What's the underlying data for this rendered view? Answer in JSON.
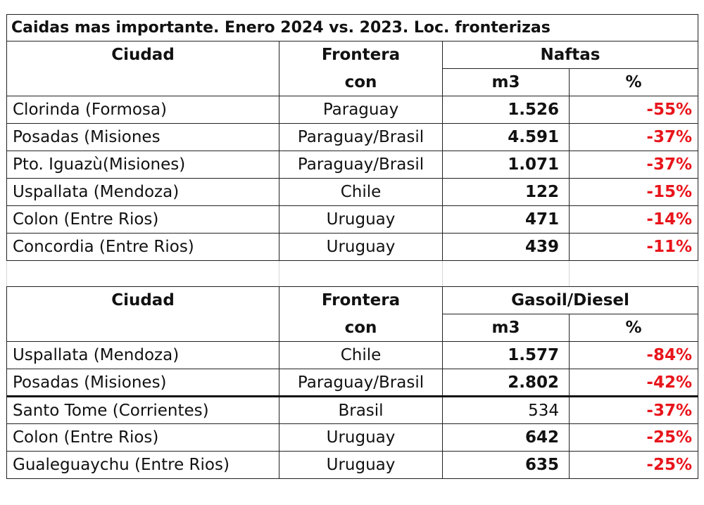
{
  "title": "Caidas mas importante. Enero 2024 vs. 2023. Loc. fronterizas",
  "headers": {
    "ciudad": "Ciudad",
    "frontera": "Frontera",
    "frontera_sub": "con",
    "m3": "m3",
    "pct": "%"
  },
  "naftas": {
    "section_label": "Naftas",
    "rows": [
      {
        "ciudad": "Clorinda (Formosa)",
        "frontera": "Paraguay",
        "m3": "1.526",
        "pct": "-55%"
      },
      {
        "ciudad": "Posadas (Misiones",
        "frontera": "Paraguay/Brasil",
        "m3": "4.591",
        "pct": "-37%"
      },
      {
        "ciudad": "Pto. Iguazù(Misiones)",
        "frontera": "Paraguay/Brasil",
        "m3": "1.071",
        "pct": "-37%"
      },
      {
        "ciudad": "Uspallata (Mendoza)",
        "frontera": "Chile",
        "m3": "122",
        "pct": "-15%"
      },
      {
        "ciudad": "Colon (Entre Rios)",
        "frontera": "Uruguay",
        "m3": "471",
        "pct": "-14%"
      },
      {
        "ciudad": "Concordia (Entre Rios)",
        "frontera": "Uruguay",
        "m3": "439",
        "pct": "-11%"
      }
    ]
  },
  "gasoil": {
    "section_label": "Gasoil/Diesel",
    "rows": [
      {
        "ciudad": "Uspallata (Mendoza)",
        "frontera": "Chile",
        "m3": "1.577",
        "pct": "-84%"
      },
      {
        "ciudad": "Posadas (Misiones)",
        "frontera": "Paraguay/Brasil",
        "m3": "2.802",
        "pct": "-42%"
      },
      {
        "ciudad": "Santo Tome (Corrientes)",
        "frontera": "Brasil",
        "m3": "534",
        "pct": "-37%"
      },
      {
        "ciudad": "Colon (Entre Rios)",
        "frontera": "Uruguay",
        "m3": "642",
        "pct": "-25%"
      },
      {
        "ciudad": "Gualeguaychu (Entre Rios)",
        "frontera": "Uruguay",
        "m3": "635",
        "pct": "-25%"
      }
    ]
  },
  "colors": {
    "negative_pct": "#e8141b",
    "grid": "#222222"
  }
}
